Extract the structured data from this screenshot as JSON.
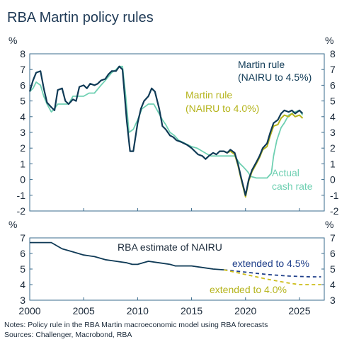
{
  "title": "RBA Martin policy rules",
  "notes": [
    "Notes: Policy rule in the RBA Martin macroeconomic model using RBA forecasts",
    "Sources: Challenger, Macrobond, RBA"
  ],
  "colors": {
    "martin45": "#0f3a56",
    "martin40": "#b5b41c",
    "actual": "#6fd0b2",
    "nairu": "#0f3a56",
    "nairu_ext45": "#1f3f8a",
    "nairu_ext40": "#cdbd1a",
    "axis": "#3a6b8c"
  },
  "chart_data": [
    {
      "type": "line",
      "unit_left": "%",
      "unit_right": "%",
      "xlim": [
        2000,
        2027.3
      ],
      "ylim": [
        -2,
        8
      ],
      "yticks": [
        "-2",
        "-1",
        "0",
        "1",
        "2",
        "3",
        "4",
        "5",
        "6",
        "7",
        "8"
      ],
      "annotations": {
        "martin45": [
          "Martin rule",
          "(NAIRU to 4.5%)"
        ],
        "martin40": [
          "Martin rule",
          "(NAIRU to 4.0%)"
        ],
        "actual": [
          "Actual",
          "cash rate"
        ]
      },
      "series": [
        {
          "key": "martin45",
          "x": [
            2000.0,
            2000.3,
            2000.6,
            2001.0,
            2001.3,
            2001.6,
            2002.0,
            2002.3,
            2002.6,
            2003.0,
            2003.3,
            2003.6,
            2004.0,
            2004.3,
            2004.6,
            2005.0,
            2005.3,
            2005.6,
            2006.0,
            2006.3,
            2006.6,
            2007.0,
            2007.3,
            2007.6,
            2008.0,
            2008.3,
            2008.6,
            2009.0,
            2009.3,
            2009.6,
            2010.0,
            2010.3,
            2010.6,
            2011.0,
            2011.3,
            2011.6,
            2012.0,
            2012.3,
            2012.6,
            2013.0,
            2013.3,
            2013.6,
            2014.0,
            2014.3,
            2014.6,
            2015.0,
            2015.3,
            2015.6,
            2016.0,
            2016.3,
            2016.6,
            2017.0,
            2017.3,
            2017.6,
            2018.0,
            2018.3,
            2018.6,
            2019.0,
            2019.3,
            2019.6,
            2020.0,
            2020.3,
            2020.6,
            2021.0,
            2021.3,
            2021.6,
            2022.0,
            2022.3,
            2022.6,
            2023.0,
            2023.3,
            2023.6,
            2024.0,
            2024.3,
            2024.6,
            2025.0,
            2025.3
          ],
          "values": [
            5.6,
            6.3,
            6.8,
            6.9,
            5.8,
            4.9,
            4.6,
            4.4,
            5.7,
            5.8,
            5.0,
            4.8,
            5.1,
            5.0,
            5.9,
            6.0,
            5.8,
            6.1,
            6.0,
            6.1,
            6.3,
            6.4,
            6.7,
            6.9,
            6.9,
            7.2,
            7.0,
            3.7,
            1.8,
            1.8,
            3.6,
            4.5,
            5.0,
            5.3,
            5.8,
            5.6,
            4.5,
            3.4,
            3.2,
            2.8,
            2.7,
            2.5,
            2.4,
            2.3,
            2.2,
            2.0,
            1.8,
            1.6,
            1.5,
            1.3,
            1.5,
            1.7,
            1.6,
            1.8,
            1.8,
            1.7,
            1.9,
            1.7,
            1.0,
            0.1,
            -1.0,
            0.0,
            0.6,
            1.1,
            1.5,
            2.0,
            2.3,
            3.0,
            3.6,
            3.8,
            4.2,
            4.4,
            4.3,
            4.4,
            4.2,
            4.4,
            4.2
          ]
        },
        {
          "key": "martin40",
          "x": [
            2017.6,
            2018.0,
            2018.3,
            2018.6,
            2019.0,
            2019.3,
            2019.6,
            2020.0,
            2020.3,
            2020.6,
            2021.0,
            2021.3,
            2021.6,
            2022.0,
            2022.3,
            2022.6,
            2023.0,
            2023.3,
            2023.6,
            2024.0,
            2024.3,
            2024.6,
            2025.0,
            2025.3
          ],
          "values": [
            1.8,
            1.8,
            1.7,
            1.8,
            1.6,
            0.9,
            0.0,
            -1.1,
            -0.1,
            0.5,
            1.0,
            1.4,
            1.9,
            2.1,
            2.8,
            3.4,
            3.5,
            3.9,
            4.1,
            4.0,
            4.2,
            4.0,
            4.1,
            3.9
          ]
        },
        {
          "key": "actual",
          "x": [
            2000.0,
            2000.3,
            2000.6,
            2001.0,
            2001.3,
            2001.6,
            2002.0,
            2002.3,
            2002.6,
            2003.0,
            2003.6,
            2004.0,
            2005.0,
            2005.5,
            2006.0,
            2006.6,
            2007.0,
            2007.6,
            2008.0,
            2008.3,
            2008.6,
            2008.9,
            2009.2,
            2009.6,
            2010.0,
            2010.4,
            2010.8,
            2011.0,
            2011.5,
            2011.9,
            2012.3,
            2012.6,
            2013.0,
            2013.4,
            2013.8,
            2015.0,
            2015.5,
            2016.0,
            2016.5,
            2016.8,
            2018.0,
            2019.0,
            2019.5,
            2019.8,
            2020.2,
            2020.5,
            2021.0,
            2022.0,
            2022.4,
            2022.6,
            2022.9,
            2023.3,
            2023.6,
            2024.0,
            2024.6,
            2025.0,
            2025.3
          ],
          "values": [
            5.6,
            5.8,
            6.2,
            6.0,
            5.3,
            4.8,
            4.3,
            4.5,
            4.8,
            4.8,
            4.8,
            5.3,
            5.3,
            5.5,
            5.5,
            6.0,
            6.3,
            6.8,
            7.0,
            7.2,
            7.2,
            5.3,
            3.0,
            3.2,
            3.8,
            4.5,
            4.7,
            4.8,
            4.8,
            4.3,
            3.8,
            3.5,
            3.0,
            2.8,
            2.5,
            2.1,
            2.0,
            1.8,
            1.6,
            1.5,
            1.5,
            1.5,
            1.0,
            0.8,
            0.5,
            0.2,
            0.1,
            0.1,
            0.4,
            1.5,
            2.5,
            3.3,
            3.6,
            4.1,
            4.3,
            4.4,
            4.1
          ]
        }
      ]
    },
    {
      "type": "line",
      "unit_left": "%",
      "unit_right": "%",
      "xlim": [
        2000,
        2027.3
      ],
      "ylim": [
        3,
        7
      ],
      "yticks": [
        "3",
        "4",
        "5",
        "6",
        "7"
      ],
      "xticks": [
        "2000",
        "2005",
        "2010",
        "2015",
        "2020",
        "2025"
      ],
      "annotations": {
        "nairu": "RBA estimate of NAIRU",
        "ext45": "extended to 4.5%",
        "ext40": "extended to 4.0%"
      },
      "series": [
        {
          "key": "nairu",
          "x": [
            2000.0,
            2001.0,
            2002.0,
            2002.5,
            2003.0,
            2004.0,
            2005.0,
            2006.0,
            2007.0,
            2008.0,
            2009.0,
            2009.5,
            2010.0,
            2011.0,
            2012.0,
            2013.0,
            2013.5,
            2014.0,
            2015.0,
            2016.0,
            2017.0,
            2018.0
          ],
          "values": [
            6.7,
            6.7,
            6.7,
            6.5,
            6.3,
            6.1,
            5.9,
            5.8,
            5.6,
            5.5,
            5.4,
            5.3,
            5.3,
            5.5,
            5.4,
            5.3,
            5.2,
            5.2,
            5.2,
            5.1,
            5.0,
            4.95
          ]
        },
        {
          "key": "ext45",
          "x": [
            2018.0,
            2020.0,
            2022.0,
            2024.0,
            2026.0,
            2027.0
          ],
          "values": [
            4.95,
            4.8,
            4.65,
            4.55,
            4.5,
            4.5
          ]
        },
        {
          "key": "ext40",
          "x": [
            2018.0,
            2020.0,
            2022.0,
            2024.0,
            2025.0,
            2027.0
          ],
          "values": [
            4.95,
            4.65,
            4.35,
            4.1,
            4.0,
            4.0
          ]
        }
      ]
    }
  ]
}
